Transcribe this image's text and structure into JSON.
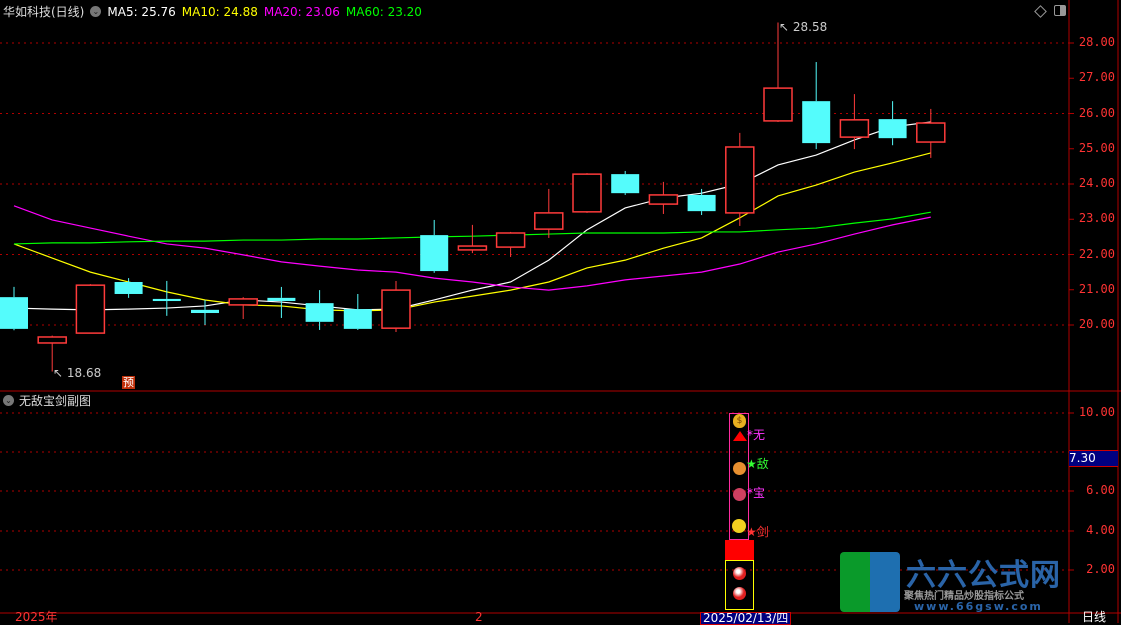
{
  "header": {
    "stock": "华如科技(日线)",
    "ma5": "MA5: 25.76",
    "ma10": "MA10: 24.88",
    "ma20": "MA20: 23.06",
    "ma60": "MA60: 23.20"
  },
  "colors": {
    "up": "#ff3b3b",
    "down": "#54fcfc",
    "ma5": "#ffffff",
    "ma10": "#ffff00",
    "ma20": "#ff00ff",
    "ma60": "#00ff00",
    "axis": "#ff3333",
    "grid": "#b00000"
  },
  "main_axis": {
    "ticks": [
      "28.00",
      "27.00",
      "26.00",
      "25.00",
      "24.00",
      "23.00",
      "22.00",
      "21.00",
      "20.00"
    ]
  },
  "annotations": {
    "high": "28.58",
    "low": "18.68",
    "forecast_badge": "预"
  },
  "sub_panel": {
    "title": "无敌宝剑副图",
    "ticks": [
      "10.00",
      "6.00",
      "4.00",
      "2.00"
    ],
    "current_value": "7.30",
    "signals": [
      {
        "label": "*无",
        "color": "#ff33ff",
        "icon": "triangle-up"
      },
      {
        "label": "★敌",
        "color": "#33ff33",
        "icon": "lion-face"
      },
      {
        "label": "*宝",
        "color": "#ff33ff",
        "icon": "flower-face"
      },
      {
        "label": "★剑",
        "color": "#ff3333",
        "icon": "smiley-face"
      }
    ],
    "top_icon": "money-bag"
  },
  "footer": {
    "year": "2025年",
    "month": "2",
    "cursor_date": "2025/02/13/四",
    "period": "日线"
  },
  "watermark": {
    "title": "六六公式网",
    "subtitle": "聚焦热门精品炒股指标公式",
    "url": "www.66gsw.com"
  },
  "chart_data": {
    "type": "candlestick",
    "ylim": [
      18.2,
      29.0
    ],
    "candles": [
      [
        20.79,
        21.08,
        19.85,
        19.89
      ],
      [
        19.49,
        19.7,
        18.68,
        19.66
      ],
      [
        19.77,
        21.16,
        19.77,
        21.13
      ],
      [
        21.22,
        21.33,
        20.77,
        20.88
      ],
      [
        20.74,
        21.25,
        20.26,
        20.68
      ],
      [
        20.43,
        20.71,
        20.0,
        20.34
      ],
      [
        20.57,
        20.79,
        20.17,
        20.74
      ],
      [
        20.77,
        21.08,
        20.2,
        20.68
      ],
      [
        20.62,
        20.99,
        19.86,
        20.09
      ],
      [
        20.45,
        20.88,
        19.86,
        19.89
      ],
      [
        19.91,
        21.25,
        19.8,
        20.99
      ],
      [
        22.55,
        22.98,
        21.48,
        21.53
      ],
      [
        22.13,
        22.84,
        22.04,
        22.24
      ],
      [
        22.21,
        22.64,
        21.93,
        22.61
      ],
      [
        22.72,
        23.86,
        22.47,
        23.18
      ],
      [
        23.21,
        24.31,
        23.18,
        24.28
      ],
      [
        24.28,
        24.37,
        23.69,
        23.74
      ],
      [
        23.43,
        24.06,
        23.15,
        23.69
      ],
      [
        23.69,
        23.86,
        23.12,
        23.23
      ],
      [
        23.18,
        25.45,
        22.81,
        25.05
      ],
      [
        25.79,
        28.58,
        25.76,
        26.72
      ],
      [
        26.35,
        27.46,
        24.99,
        25.16
      ],
      [
        25.33,
        26.55,
        24.99,
        25.82
      ],
      [
        25.84,
        26.35,
        25.1,
        25.3
      ],
      [
        25.19,
        26.13,
        24.74,
        25.73
      ]
    ],
    "candle_format": [
      "open",
      "high",
      "low",
      "close"
    ],
    "series": [
      {
        "name": "MA5",
        "values": [
          20.48,
          20.45,
          20.43,
          20.45,
          20.48,
          20.54,
          20.71,
          20.65,
          20.54,
          20.43,
          20.45,
          20.71,
          20.99,
          21.22,
          21.84,
          22.7,
          23.32,
          23.6,
          23.74,
          24.0,
          24.54,
          24.82,
          25.25,
          25.62,
          25.76
        ]
      },
      {
        "name": "MA10",
        "values": [
          22.3,
          21.9,
          21.5,
          21.22,
          20.94,
          20.71,
          20.57,
          20.54,
          20.43,
          20.4,
          20.43,
          20.65,
          20.82,
          20.99,
          21.22,
          21.62,
          21.84,
          22.18,
          22.47,
          23.04,
          23.66,
          23.97,
          24.34,
          24.6,
          24.88
        ]
      },
      {
        "name": "MA20",
        "values": [
          23.38,
          22.98,
          22.75,
          22.52,
          22.3,
          22.18,
          21.99,
          21.79,
          21.67,
          21.56,
          21.5,
          21.33,
          21.22,
          21.08,
          20.99,
          21.11,
          21.28,
          21.39,
          21.5,
          21.73,
          22.07,
          22.3,
          22.58,
          22.84,
          23.06
        ]
      },
      {
        "name": "MA60",
        "values": [
          22.3,
          22.33,
          22.33,
          22.36,
          22.38,
          22.38,
          22.41,
          22.41,
          22.44,
          22.44,
          22.47,
          22.5,
          22.52,
          22.55,
          22.58,
          22.61,
          22.61,
          22.61,
          22.64,
          22.64,
          22.7,
          22.75,
          22.89,
          23.01,
          23.2
        ]
      }
    ],
    "grid": true
  }
}
